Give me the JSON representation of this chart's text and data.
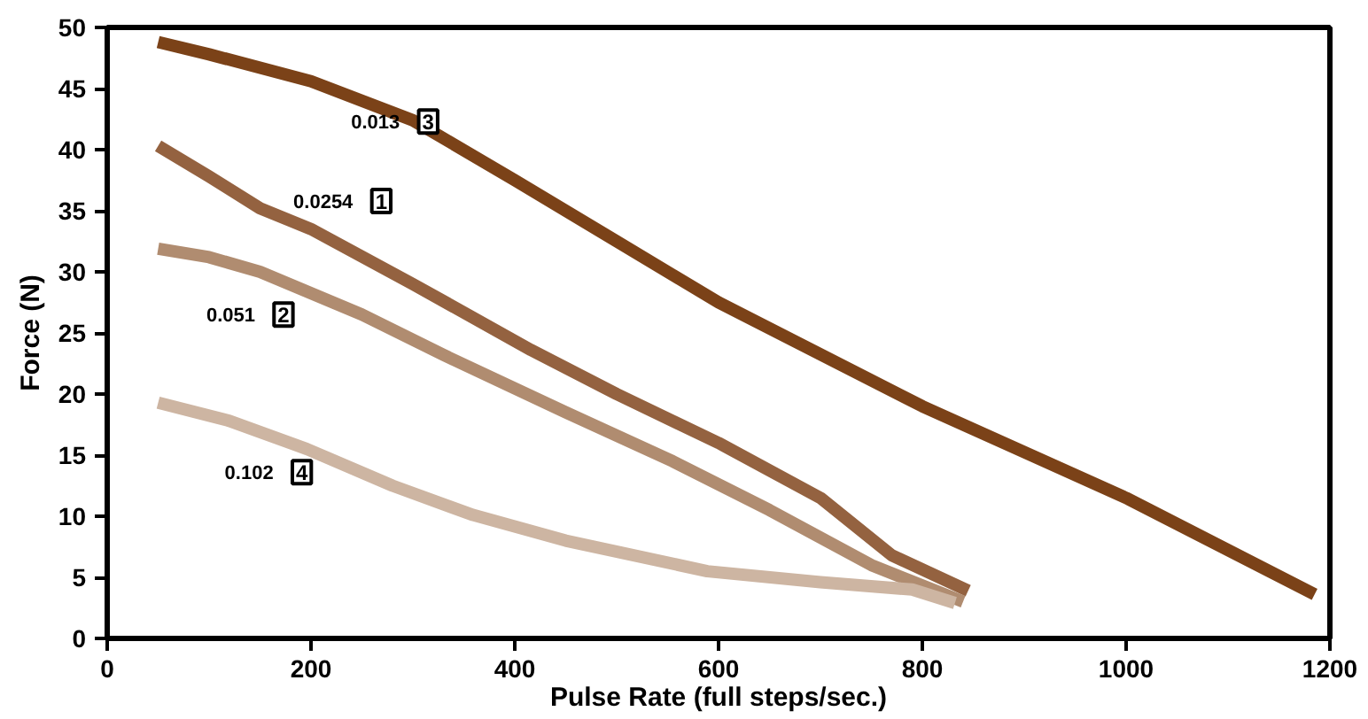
{
  "chart_data": {
    "type": "line",
    "xlabel": "Pulse Rate (full steps/sec.)",
    "ylabel": "Force (N)",
    "xlim": [
      0,
      1200
    ],
    "xticks": [
      0,
      200,
      400,
      600,
      800,
      1000,
      1200
    ],
    "ylim": [
      0,
      50
    ],
    "yticks": [
      0,
      5,
      10,
      15,
      20,
      25,
      30,
      35,
      40,
      45,
      50
    ],
    "grid": false,
    "marker": "none",
    "line_style": "solid",
    "series": [
      {
        "name": "0.013",
        "color": "#7b4218",
        "x": [
          50,
          100,
          200,
          300,
          400,
          500,
          600,
          800,
          1000,
          1185
        ],
        "values": [
          48.8,
          47.8,
          45.6,
          42.4,
          37.5,
          32.5,
          27.5,
          19,
          11.5,
          3.6
        ]
      },
      {
        "name": "0.0254",
        "color": "#946240",
        "x": [
          50,
          100,
          150,
          200,
          300,
          416,
          500,
          600,
          700,
          770,
          845
        ],
        "values": [
          40.3,
          37.8,
          35.2,
          33.5,
          29,
          23.6,
          20,
          16,
          11.5,
          6.8,
          3.9
        ]
      },
      {
        "name": "0.051",
        "color": "#b08c70",
        "x": [
          50,
          100,
          150,
          250,
          330,
          450,
          555,
          650,
          750,
          840
        ],
        "values": [
          31.9,
          31.2,
          30,
          26.5,
          23.2,
          18.5,
          14.5,
          10.5,
          6,
          3
        ]
      },
      {
        "name": "0.102",
        "color": "#cdb5a2",
        "x": [
          50,
          120,
          196,
          280,
          359,
          450,
          589,
          700,
          790,
          832
        ],
        "values": [
          19.3,
          17.8,
          15.5,
          12.5,
          10.1,
          8,
          5.5,
          4.6,
          4,
          2.9
        ]
      }
    ],
    "annotations": [
      {
        "text": "3",
        "x": 315,
        "y": 42.3
      },
      {
        "text": "1",
        "x": 269,
        "y": 35.8
      },
      {
        "text": "2",
        "x": 173,
        "y": 26.5
      },
      {
        "text": "4",
        "x": 191,
        "y": 13.6
      }
    ]
  }
}
